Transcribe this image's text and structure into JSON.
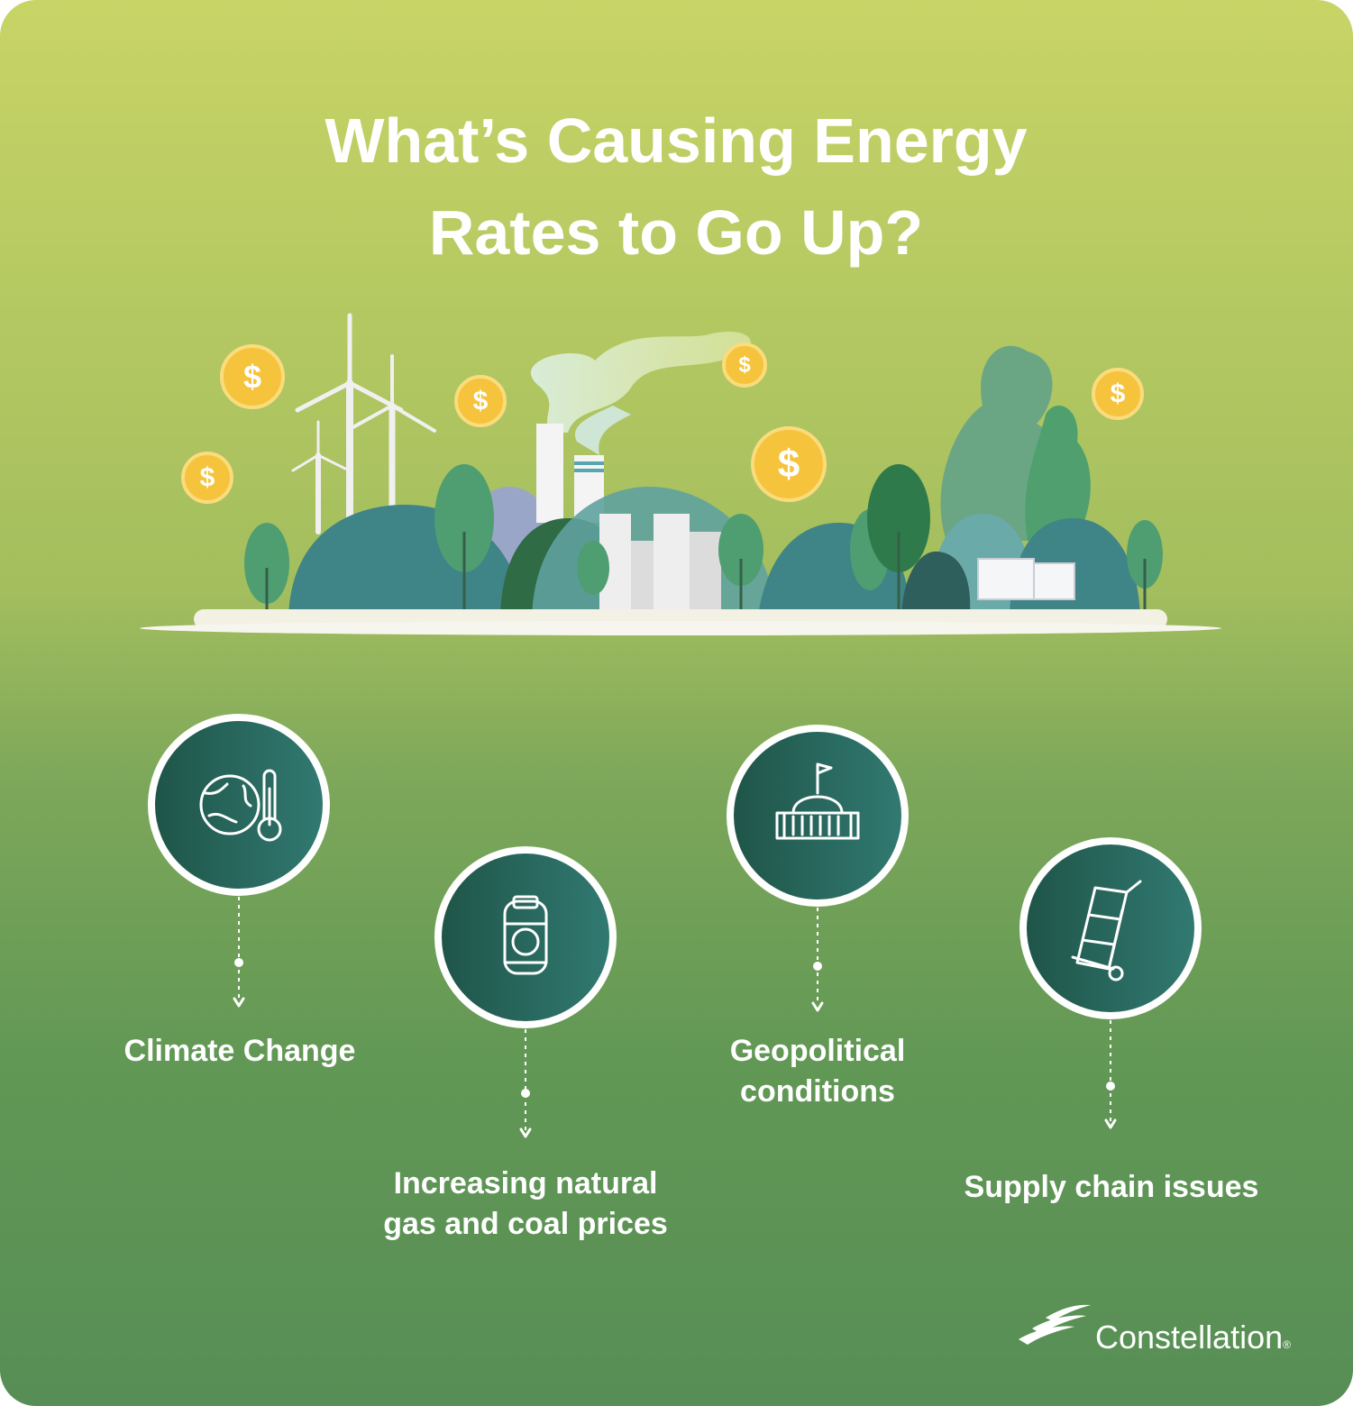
{
  "title_lines": [
    "What’s Causing Energy",
    "Rates to Go Up?"
  ],
  "coin_symbol": "$",
  "items": [
    {
      "label_lines": [
        "Climate Change"
      ]
    },
    {
      "label_lines": [
        "Increasing natural",
        "gas and coal prices"
      ]
    },
    {
      "label_lines": [
        "Geopolitical",
        "conditions"
      ]
    },
    {
      "label_lines": [
        "Supply chain issues"
      ]
    }
  ],
  "brand": {
    "name": "Constellation",
    "mark": "®"
  }
}
